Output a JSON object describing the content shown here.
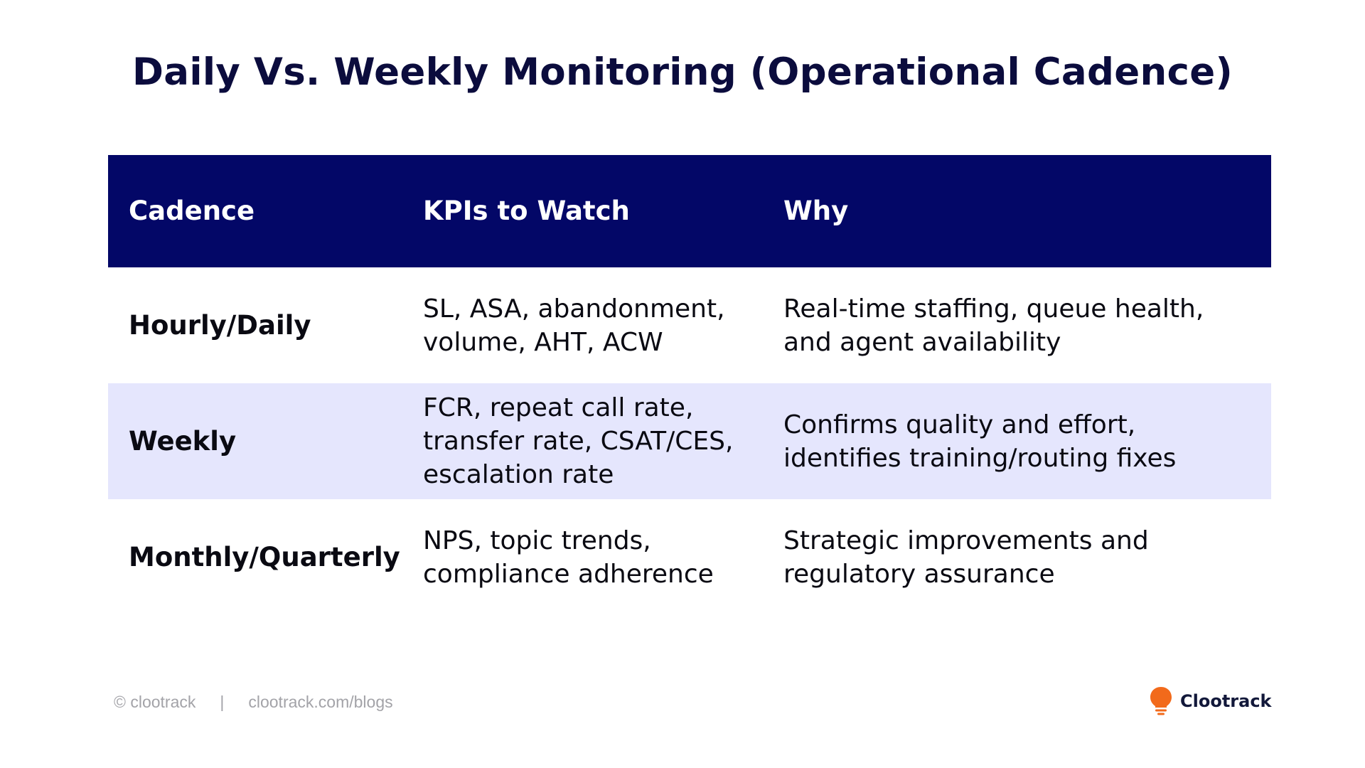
{
  "title": "Daily Vs. Weekly Monitoring (Operational Cadence)",
  "table": {
    "headers": [
      "Cadence",
      "KPIs to Watch",
      "Why"
    ],
    "rows": [
      {
        "cadence": "Hourly/Daily",
        "kpi_lines": [
          "SL, ASA, abandonment,",
          "volume, AHT, ACW"
        ],
        "why_lines": [
          "Real-time staffing, queue health,",
          "and agent availability"
        ]
      },
      {
        "cadence": "Weekly",
        "kpi_lines": [
          "FCR, repeat call rate,",
          "transfer rate, CSAT/CES,",
          "escalation rate"
        ],
        "why_lines": [
          "Confirms quality and effort,",
          "identifies training/routing fixes"
        ]
      },
      {
        "cadence": "Monthly/Quarterly",
        "kpi_lines": [
          "NPS, topic trends,",
          "compliance adherence"
        ],
        "why_lines": [
          "Strategic improvements and",
          "regulatory assurance"
        ]
      }
    ],
    "colors": {
      "header_bg": "#030767",
      "alt_row_bg": "#e5e6fd",
      "title": "#0b0c3d"
    }
  },
  "footer": {
    "copyright": "© clootrack",
    "separator": "|",
    "url": "clootrack.com/blogs"
  },
  "brand": {
    "name": "Clootrack",
    "icon": "lightbulb-icon",
    "icon_color": "#f26a1b"
  }
}
